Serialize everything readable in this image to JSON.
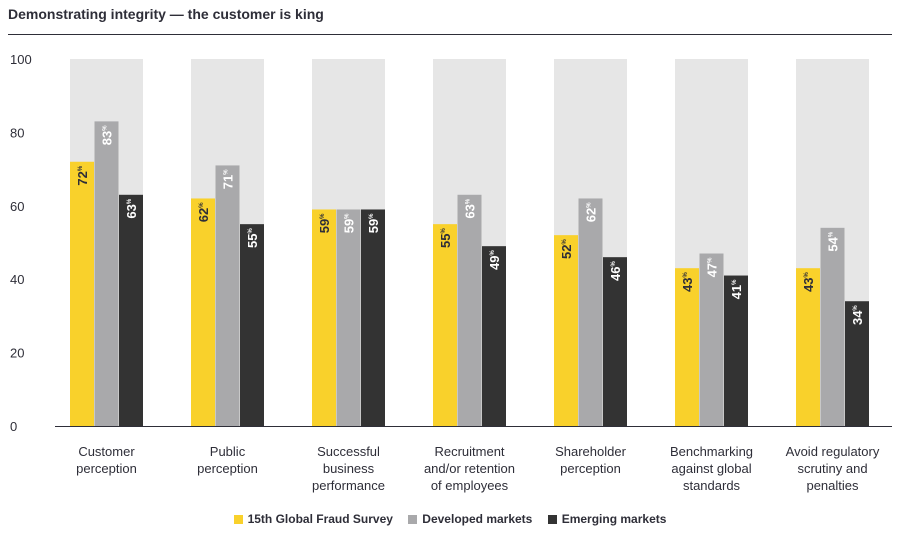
{
  "chart_data": {
    "type": "bar",
    "title": "Demonstrating integrity — the customer is king",
    "xlabel": "",
    "ylabel": "",
    "ylim": [
      0,
      100
    ],
    "yticks": [
      0,
      20,
      40,
      60,
      80,
      100
    ],
    "categories": [
      [
        "Customer",
        "perception"
      ],
      [
        "Public",
        "perception"
      ],
      [
        "Successful",
        "business",
        "performance"
      ],
      [
        "Recruitment",
        "and/or retention",
        "of employees"
      ],
      [
        "Shareholder",
        "perception"
      ],
      [
        "Benchmarking",
        "against global",
        "standards"
      ],
      [
        "Avoid regulatory",
        "scrutiny and",
        "penalties"
      ]
    ],
    "series": [
      {
        "name": "15th Global Fraud Survey",
        "color": "#f9d12b",
        "label_color": "#2e2e38",
        "values": [
          72,
          62,
          59,
          55,
          52,
          43,
          43
        ]
      },
      {
        "name": "Developed markets",
        "color": "#a9a9ab",
        "label_color": "#ffffff",
        "values": [
          83,
          71,
          59,
          63,
          62,
          47,
          54
        ]
      },
      {
        "name": "Emerging markets",
        "color": "#333333",
        "label_color": "#ffffff",
        "values": [
          63,
          55,
          59,
          49,
          46,
          41,
          34
        ]
      }
    ],
    "value_suffix": "%",
    "background_band_color": "#e6e6e6",
    "legend_position": "bottom-center"
  }
}
